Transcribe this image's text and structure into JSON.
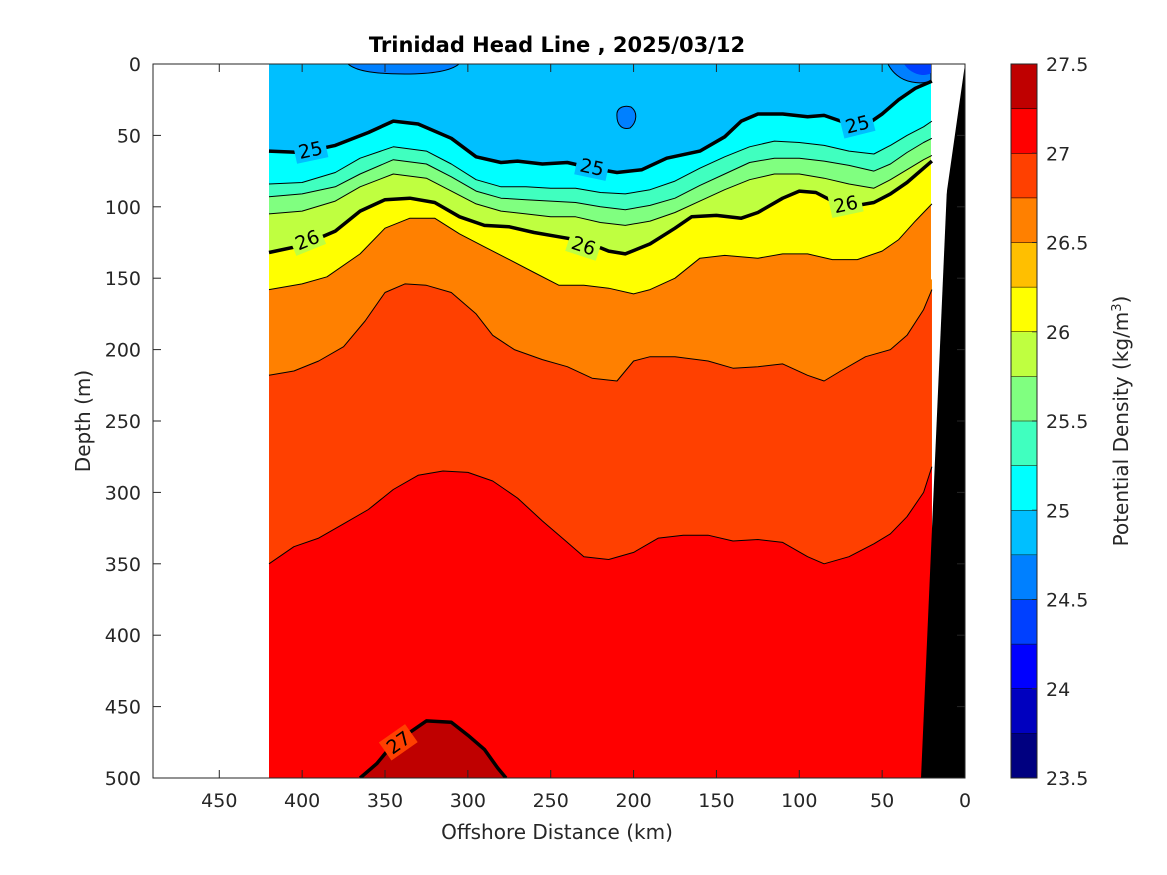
{
  "chart_data": {
    "type": "contour",
    "title": "Trinidad Head Line , 2025/03/12",
    "xlabel": "Offshore Distance (km)",
    "ylabel": "Depth (m)",
    "colorbar_label_main": "Potential Density (kg/m",
    "colorbar_label_sup": "3",
    "colorbar_label_close": ")",
    "xlim": [
      490,
      0
    ],
    "ylim": [
      0,
      500
    ],
    "x_reversed": true,
    "y_reversed": true,
    "x_ticks": [
      450,
      400,
      350,
      300,
      250,
      200,
      150,
      100,
      50,
      0
    ],
    "y_ticks": [
      0,
      50,
      100,
      150,
      200,
      250,
      300,
      350,
      400,
      450,
      500
    ],
    "data_extent_x": [
      420,
      20
    ],
    "colorbar": {
      "range": [
        23.5,
        27.5
      ],
      "ticks": [
        23.5,
        24,
        24.5,
        25,
        25.5,
        26,
        26.5,
        27,
        27.5
      ],
      "colors": [
        "#000080",
        "#0000bf",
        "#0000ff",
        "#0040ff",
        "#0080ff",
        "#00bfff",
        "#00ffff",
        "#40ffbf",
        "#80ff80",
        "#bfff40",
        "#ffff00",
        "#ffbf00",
        "#ff8000",
        "#ff4000",
        "#ff0000",
        "#bf0000"
      ]
    },
    "bold_contour_labels": [
      {
        "text": "25",
        "x": 395,
        "y": 60,
        "angle": -12
      },
      {
        "text": "25",
        "x": 225,
        "y": 72,
        "angle": 12
      },
      {
        "text": "25",
        "x": 65,
        "y": 42,
        "angle": -14
      },
      {
        "text": "26",
        "x": 397,
        "y": 123,
        "angle": -22
      },
      {
        "text": "26",
        "x": 230,
        "y": 127,
        "angle": 18
      },
      {
        "text": "26",
        "x": 72,
        "y": 98,
        "angle": -12
      },
      {
        "text": "27",
        "x": 342,
        "y": 475,
        "angle": -35
      }
    ],
    "isolines": [
      {
        "level": 24.75,
        "bold": false,
        "points": [
          [
            420,
            0
          ],
          [
            20,
            0
          ]
        ]
      },
      {
        "level": 25.0,
        "bold": true,
        "points": [
          [
            420,
            61
          ],
          [
            400,
            62
          ],
          [
            380,
            57
          ],
          [
            360,
            48
          ],
          [
            345,
            40
          ],
          [
            330,
            42
          ],
          [
            310,
            52
          ],
          [
            295,
            65
          ],
          [
            280,
            69
          ],
          [
            270,
            68
          ],
          [
            255,
            70
          ],
          [
            240,
            69
          ],
          [
            225,
            73
          ],
          [
            210,
            76
          ],
          [
            195,
            74
          ],
          [
            180,
            66
          ],
          [
            160,
            61
          ],
          [
            145,
            51
          ],
          [
            135,
            40
          ],
          [
            125,
            35
          ],
          [
            110,
            35
          ],
          [
            95,
            37
          ],
          [
            85,
            36
          ],
          [
            70,
            42
          ],
          [
            60,
            43
          ],
          [
            50,
            35
          ],
          [
            40,
            25
          ],
          [
            30,
            17
          ],
          [
            20,
            12
          ]
        ]
      },
      {
        "level": 25.25,
        "bold": false,
        "points": [
          [
            420,
            84
          ],
          [
            400,
            83
          ],
          [
            380,
            76
          ],
          [
            365,
            66
          ],
          [
            345,
            58
          ],
          [
            325,
            61
          ],
          [
            310,
            70
          ],
          [
            295,
            81
          ],
          [
            280,
            86
          ],
          [
            265,
            86
          ],
          [
            250,
            87
          ],
          [
            235,
            87
          ],
          [
            220,
            90
          ],
          [
            205,
            91
          ],
          [
            190,
            88
          ],
          [
            175,
            82
          ],
          [
            160,
            73
          ],
          [
            145,
            65
          ],
          [
            130,
            58
          ],
          [
            115,
            54
          ],
          [
            100,
            55
          ],
          [
            85,
            57
          ],
          [
            70,
            61
          ],
          [
            55,
            63
          ],
          [
            45,
            57
          ],
          [
            35,
            50
          ],
          [
            25,
            44
          ],
          [
            20,
            40
          ]
        ]
      },
      {
        "level": 25.5,
        "bold": false,
        "points": [
          [
            420,
            93
          ],
          [
            400,
            91
          ],
          [
            380,
            86
          ],
          [
            365,
            77
          ],
          [
            345,
            67
          ],
          [
            325,
            70
          ],
          [
            310,
            79
          ],
          [
            295,
            89
          ],
          [
            280,
            94
          ],
          [
            265,
            95
          ],
          [
            250,
            96
          ],
          [
            235,
            97
          ],
          [
            220,
            100
          ],
          [
            205,
            102
          ],
          [
            190,
            99
          ],
          [
            175,
            94
          ],
          [
            160,
            85
          ],
          [
            145,
            77
          ],
          [
            130,
            69
          ],
          [
            115,
            66
          ],
          [
            100,
            66
          ],
          [
            85,
            68
          ],
          [
            70,
            71
          ],
          [
            55,
            75
          ],
          [
            45,
            70
          ],
          [
            35,
            62
          ],
          [
            25,
            55
          ],
          [
            20,
            52
          ]
        ]
      },
      {
        "level": 25.75,
        "bold": false,
        "points": [
          [
            420,
            105
          ],
          [
            400,
            103
          ],
          [
            380,
            96
          ],
          [
            365,
            86
          ],
          [
            345,
            77
          ],
          [
            325,
            80
          ],
          [
            310,
            89
          ],
          [
            295,
            98
          ],
          [
            280,
            103
          ],
          [
            265,
            105
          ],
          [
            250,
            107
          ],
          [
            235,
            107
          ],
          [
            220,
            111
          ],
          [
            205,
            113
          ],
          [
            190,
            110
          ],
          [
            175,
            104
          ],
          [
            160,
            96
          ],
          [
            145,
            88
          ],
          [
            130,
            81
          ],
          [
            115,
            77
          ],
          [
            100,
            77
          ],
          [
            85,
            80
          ],
          [
            70,
            84
          ],
          [
            55,
            87
          ],
          [
            45,
            81
          ],
          [
            35,
            74
          ],
          [
            25,
            67
          ],
          [
            20,
            64
          ]
        ]
      },
      {
        "level": 26.0,
        "bold": true,
        "points": [
          [
            420,
            132
          ],
          [
            400,
            127
          ],
          [
            380,
            117
          ],
          [
            365,
            103
          ],
          [
            350,
            95
          ],
          [
            335,
            94
          ],
          [
            320,
            97
          ],
          [
            305,
            107
          ],
          [
            290,
            113
          ],
          [
            275,
            114
          ],
          [
            260,
            118
          ],
          [
            245,
            121
          ],
          [
            230,
            124
          ],
          [
            215,
            131
          ],
          [
            205,
            133
          ],
          [
            190,
            126
          ],
          [
            175,
            115
          ],
          [
            165,
            107
          ],
          [
            150,
            106
          ],
          [
            135,
            108
          ],
          [
            125,
            104
          ],
          [
            110,
            94
          ],
          [
            100,
            89
          ],
          [
            90,
            90
          ],
          [
            80,
            96
          ],
          [
            70,
            100
          ],
          [
            55,
            97
          ],
          [
            45,
            91
          ],
          [
            35,
            83
          ],
          [
            25,
            73
          ],
          [
            20,
            68
          ]
        ]
      },
      {
        "level": 26.5,
        "bold": false,
        "points": [
          [
            420,
            158
          ],
          [
            400,
            154
          ],
          [
            385,
            149
          ],
          [
            365,
            133
          ],
          [
            350,
            115
          ],
          [
            335,
            108
          ],
          [
            320,
            108
          ],
          [
            305,
            119
          ],
          [
            290,
            128
          ],
          [
            275,
            137
          ],
          [
            260,
            146
          ],
          [
            245,
            155
          ],
          [
            230,
            155
          ],
          [
            215,
            157
          ],
          [
            200,
            161
          ],
          [
            190,
            158
          ],
          [
            175,
            150
          ],
          [
            160,
            136
          ],
          [
            145,
            134
          ],
          [
            125,
            136
          ],
          [
            110,
            133
          ],
          [
            95,
            133
          ],
          [
            80,
            137
          ],
          [
            65,
            137
          ],
          [
            50,
            131
          ],
          [
            40,
            123
          ],
          [
            30,
            110
          ],
          [
            20,
            98
          ]
        ]
      },
      {
        "level": 26.75,
        "bold": false,
        "points": [
          [
            420,
            218
          ],
          [
            405,
            215
          ],
          [
            390,
            208
          ],
          [
            375,
            198
          ],
          [
            362,
            180
          ],
          [
            350,
            160
          ],
          [
            338,
            154
          ],
          [
            325,
            155
          ],
          [
            310,
            160
          ],
          [
            295,
            175
          ],
          [
            285,
            190
          ],
          [
            272,
            200
          ],
          [
            255,
            207
          ],
          [
            240,
            212
          ],
          [
            225,
            220
          ],
          [
            210,
            222
          ],
          [
            200,
            208
          ],
          [
            190,
            205
          ],
          [
            175,
            205
          ],
          [
            155,
            208
          ],
          [
            140,
            213
          ],
          [
            125,
            212
          ],
          [
            110,
            210
          ],
          [
            95,
            218
          ],
          [
            85,
            222
          ],
          [
            75,
            215
          ],
          [
            60,
            205
          ],
          [
            45,
            200
          ],
          [
            35,
            190
          ],
          [
            25,
            172
          ],
          [
            20,
            158
          ]
        ]
      },
      {
        "level": 27.0,
        "bold": false,
        "points": [
          [
            420,
            350
          ],
          [
            405,
            338
          ],
          [
            390,
            332
          ],
          [
            375,
            322
          ],
          [
            360,
            312
          ],
          [
            345,
            298
          ],
          [
            330,
            288
          ],
          [
            315,
            285
          ],
          [
            300,
            286
          ],
          [
            285,
            292
          ],
          [
            270,
            304
          ],
          [
            255,
            320
          ],
          [
            242,
            333
          ],
          [
            230,
            345
          ],
          [
            215,
            347
          ],
          [
            200,
            342
          ],
          [
            185,
            332
          ],
          [
            170,
            330
          ],
          [
            155,
            330
          ],
          [
            140,
            334
          ],
          [
            125,
            333
          ],
          [
            110,
            335
          ],
          [
            95,
            345
          ],
          [
            85,
            350
          ],
          [
            70,
            345
          ],
          [
            55,
            336
          ],
          [
            45,
            329
          ],
          [
            35,
            317
          ],
          [
            25,
            300
          ],
          [
            20,
            282
          ]
        ]
      },
      {
        "level": 27.25,
        "bold": true,
        "points": [
          [
            365,
            500
          ],
          [
            355,
            490
          ],
          [
            345,
            476
          ],
          [
            335,
            468
          ],
          [
            325,
            460
          ],
          [
            310,
            461
          ],
          [
            300,
            470
          ],
          [
            290,
            480
          ],
          [
            282,
            493
          ],
          [
            277,
            500
          ]
        ]
      }
    ]
  }
}
